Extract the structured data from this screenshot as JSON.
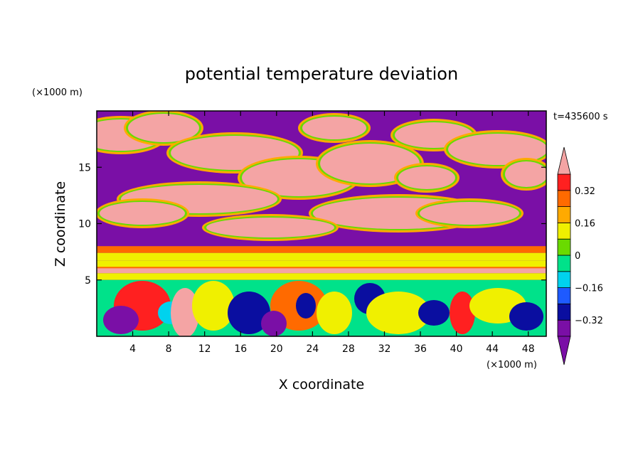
{
  "chart_data": {
    "type": "heatmap",
    "title": "potential temperature deviation",
    "xlabel": "X coordinate",
    "ylabel": "Z coordinate",
    "x_unit": "(×1000 m)",
    "y_unit": "(×1000 m)",
    "time_label": "t=435600 s",
    "xlim": [
      0,
      50
    ],
    "ylim": [
      0,
      20
    ],
    "x_ticks": [
      4,
      8,
      12,
      16,
      20,
      24,
      28,
      32,
      36,
      40,
      44,
      48
    ],
    "y_ticks": [
      5,
      10,
      15
    ],
    "colorbar": {
      "labels": [
        "0.32",
        "0.16",
        "0",
        "-0.16",
        "-0.32"
      ],
      "label_values": [
        0.32,
        0.16,
        0,
        -0.16,
        -0.32
      ],
      "levels": [
        -0.4,
        -0.32,
        -0.24,
        -0.16,
        -0.08,
        0,
        0.08,
        0.16,
        0.24,
        0.32,
        0.4
      ],
      "colors": [
        "#7a0fa6",
        "#0a0ea0",
        "#1e5aff",
        "#00d2ee",
        "#00e28a",
        "#6ada00",
        "#f0f000",
        "#ffaa00",
        "#ff6a00",
        "#ff2020",
        "#f4a4a4"
      ],
      "over_color": "#f4a4a4",
      "under_color": "#7a0fa6"
    },
    "grid": false
  }
}
